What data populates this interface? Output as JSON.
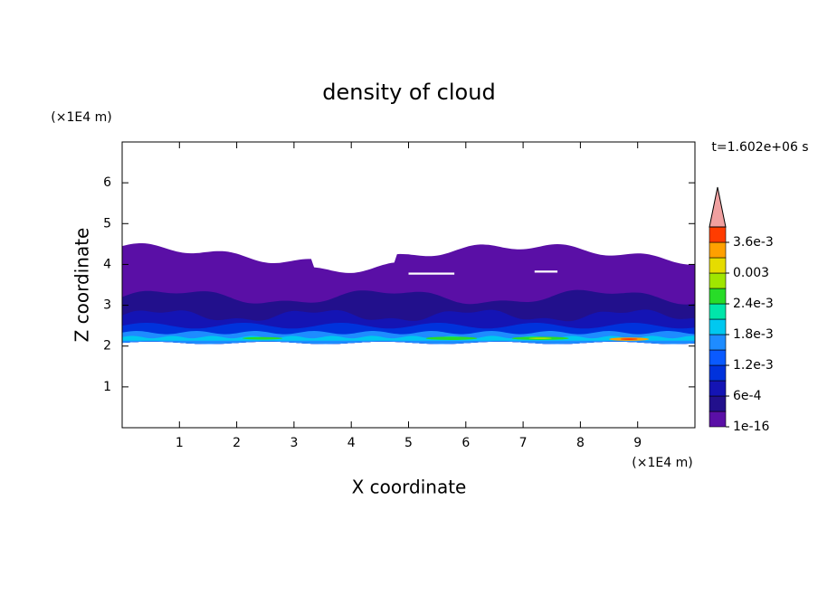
{
  "chart_data": {
    "type": "contour",
    "title": "density of cloud",
    "x_label": "X coordinate",
    "y_label": "Z coordinate",
    "x_unit": "(×1E4 m)",
    "y_unit": "(×1E4 m)",
    "time_label": "t=1.602e+06 s",
    "xlim": [
      0,
      10
    ],
    "ylim": [
      0,
      7
    ],
    "xticks": [
      1,
      2,
      3,
      4,
      5,
      6,
      7,
      8,
      9
    ],
    "yticks": [
      1,
      2,
      3,
      4,
      5,
      6
    ],
    "colorbar": {
      "levels": [
        1e-16,
        0.0003,
        0.0006,
        0.0009,
        0.0012,
        0.0015,
        0.0018,
        0.0021,
        0.0024,
        0.0027,
        0.003,
        0.0033,
        0.0036,
        0.0039
      ],
      "colors": [
        "#5a0fa6",
        "#22108c",
        "#1414b4",
        "#0032dc",
        "#0a5aff",
        "#1e8cff",
        "#00c8f0",
        "#00e6aa",
        "#28dc28",
        "#a0e600",
        "#e6dc00",
        "#ffa000",
        "#ff3c00"
      ],
      "overflow_color": "#f0a0a0",
      "ticks": [
        {
          "value": 1e-16,
          "label": "1e-16"
        },
        {
          "value": 0.0006,
          "label": "6e-4"
        },
        {
          "value": 0.0012,
          "label": "1.2e-3"
        },
        {
          "value": 0.0018,
          "label": "1.8e-3"
        },
        {
          "value": 0.0024,
          "label": "2.4e-3"
        },
        {
          "value": 0.003,
          "label": "0.003"
        },
        {
          "value": 0.0036,
          "label": "3.6e-3"
        }
      ]
    }
  }
}
